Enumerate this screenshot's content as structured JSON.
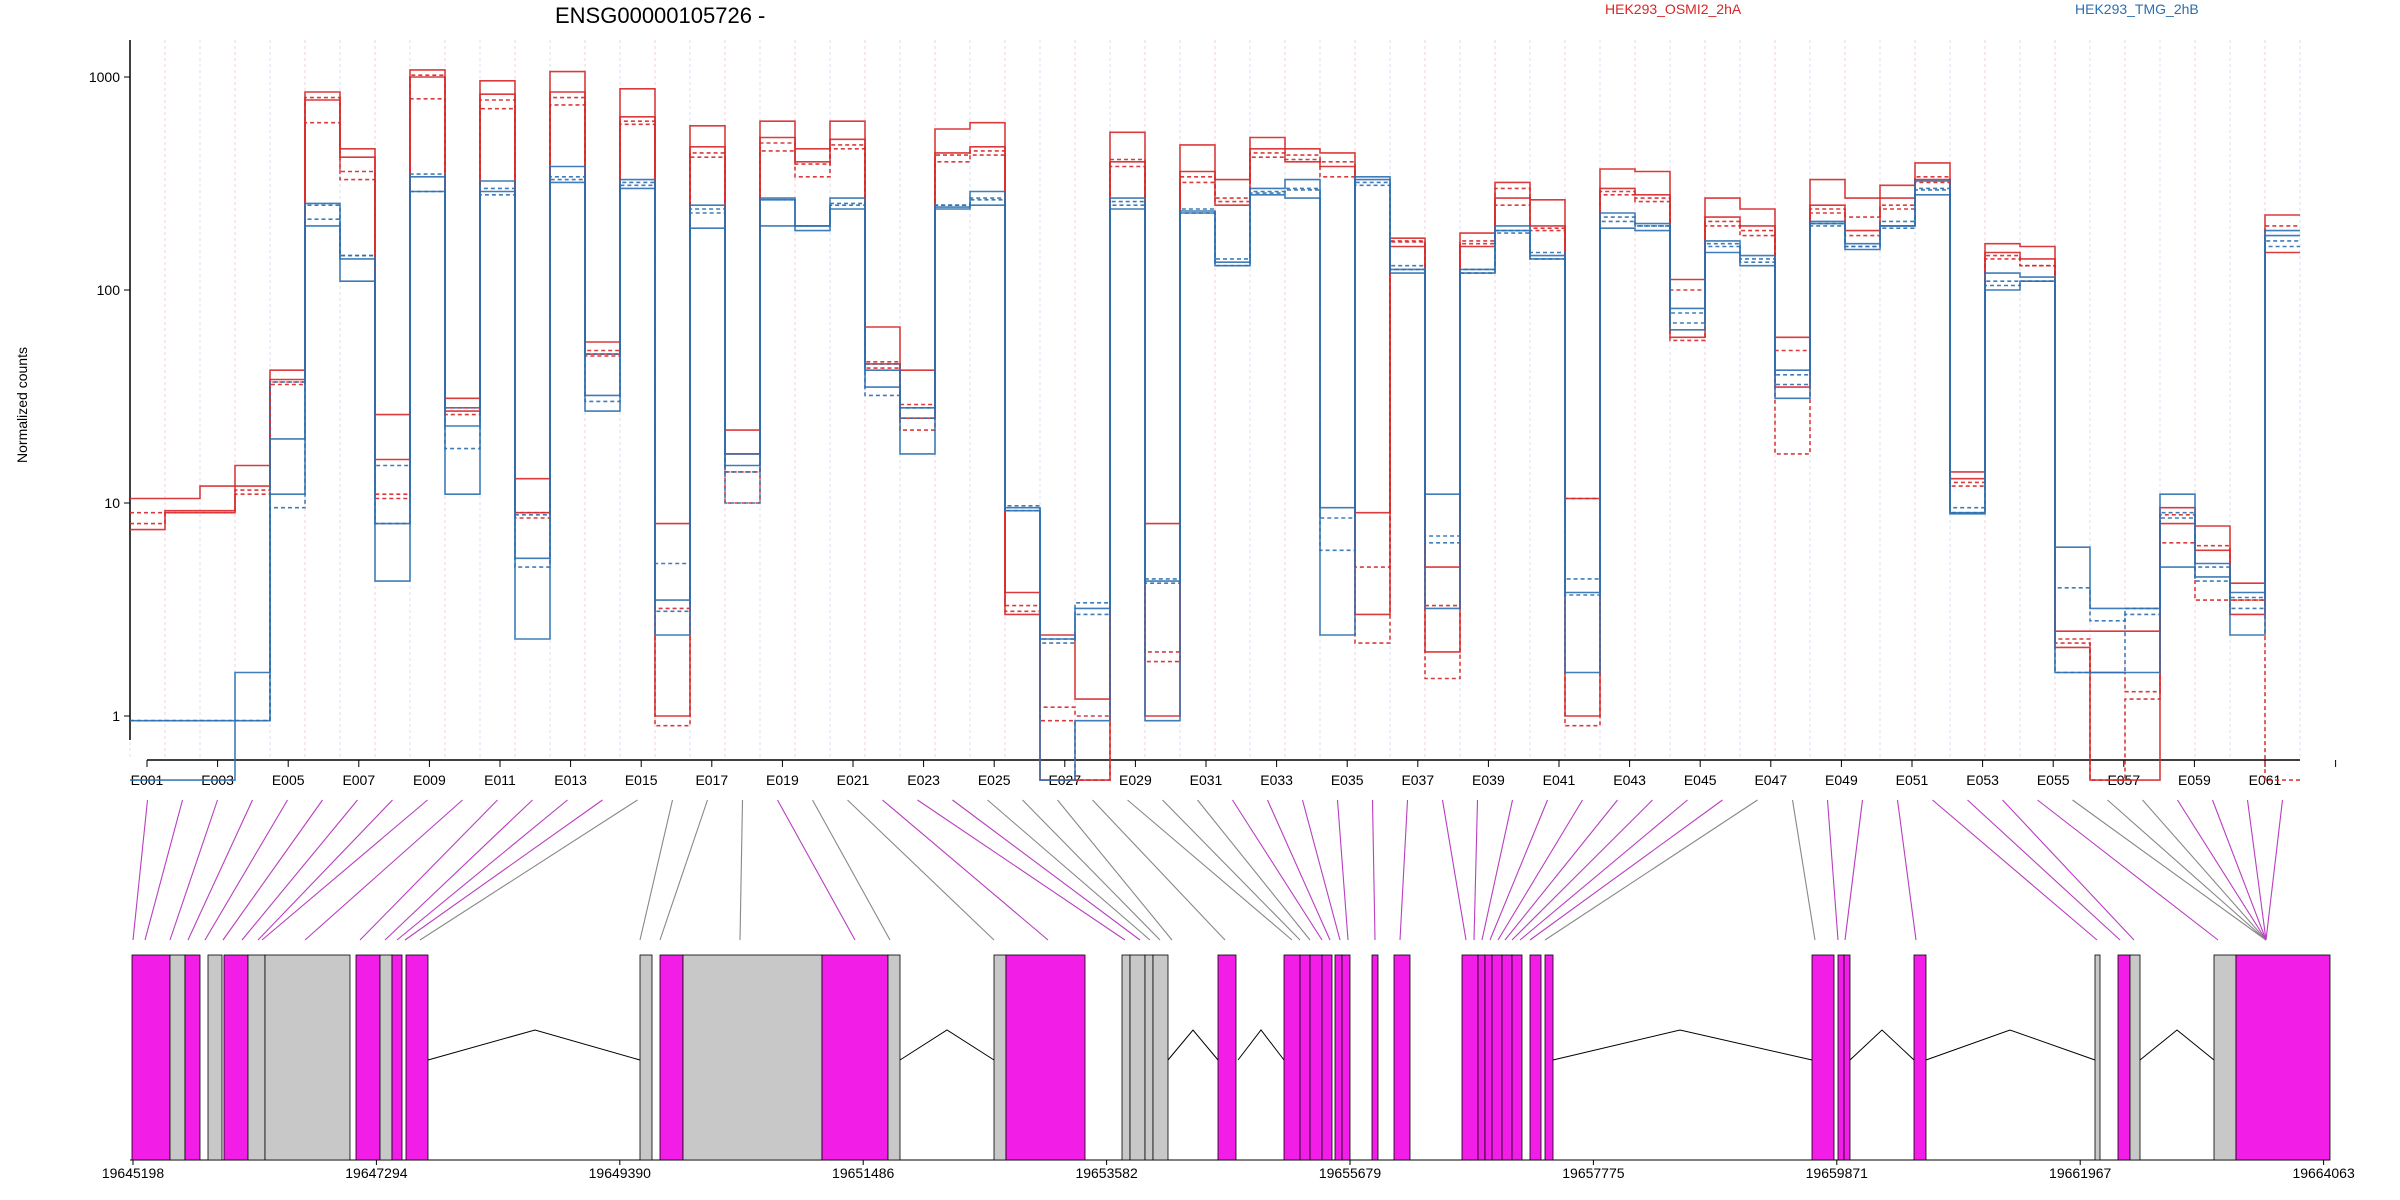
{
  "chart_data": {
    "type": "line",
    "title": "ENSG00000105726 -",
    "ylabel": "Normalized counts",
    "y_scale": "log",
    "y_ticks": [
      "1000",
      "100",
      "10",
      "1"
    ],
    "y_tick_values": [
      1000,
      100,
      10,
      1
    ],
    "y_floor": 0.5,
    "categories": [
      "E001",
      "E002",
      "E003",
      "E004",
      "E005",
      "E006",
      "E007",
      "E008",
      "E009",
      "E010",
      "E011",
      "E012",
      "E013",
      "E014",
      "E015",
      "E016",
      "E017",
      "E018",
      "E019",
      "E020",
      "E021",
      "E022",
      "E023",
      "E024",
      "E025",
      "E026",
      "E027",
      "E028",
      "E029",
      "E030",
      "E031",
      "E032",
      "E033",
      "E034",
      "E035",
      "E036",
      "E037",
      "E038",
      "E039",
      "E040",
      "E041",
      "E042",
      "E043",
      "E044",
      "E045",
      "E046",
      "E047",
      "E048",
      "E049",
      "E050",
      "E051",
      "E052",
      "E053",
      "E054",
      "E055",
      "E056",
      "E057",
      "E058",
      "E059",
      "E060",
      "E061",
      "E062"
    ],
    "x_tick_labels": [
      "E001",
      "E003",
      "E005",
      "E007",
      "E009",
      "E011",
      "E013",
      "E015",
      "E017",
      "E019",
      "E021",
      "E023",
      "E025",
      "E027",
      "E029",
      "E031",
      "E033",
      "E035",
      "E037",
      "E039",
      "E041",
      "E043",
      "E045",
      "E047",
      "E049",
      "E051",
      "E053",
      "E055",
      "E057",
      "E059",
      "E061"
    ],
    "colors": {
      "HEK293_OSMI2_2hA": "#d62728",
      "HEK293_TMG_2hB": "#2b6fb0"
    },
    "legend": [
      "HEK293_OSMI2_2hA",
      "HEK293_TMG_2hB"
    ],
    "series": [
      {
        "name": "HEK293_OSMI2_2hA",
        "values": [
          10.5,
          10.5,
          12,
          15,
          42,
          850,
          460,
          26,
          1080,
          31,
          960,
          13,
          1060,
          57,
          880,
          8,
          590,
          22,
          620,
          460,
          620,
          67,
          42,
          570,
          610,
          3.8,
          2.4,
          1.2,
          550,
          8,
          480,
          330,
          520,
          460,
          440,
          9,
          175,
          5,
          185,
          320,
          265,
          10.5,
          370,
          360,
          112,
          270,
          240,
          60,
          330,
          270,
          310,
          395,
          14,
          165,
          160,
          2.5,
          2.5,
          2.5,
          9.5,
          7.8,
          4.2,
          225
        ]
      },
      {
        "name": "HEK293_OSMI2_2hA",
        "values": [
          8,
          9,
          9,
          11,
          36,
          610,
          330,
          10.5,
          790,
          26,
          710,
          8.5,
          740,
          49,
          600,
          3.2,
          420,
          14,
          450,
          340,
          460,
          43,
          29,
          400,
          430,
          3.3,
          1.1,
          1,
          380,
          2,
          320,
          270,
          420,
          410,
          340,
          5,
          170,
          3.3,
          165,
          250,
          195,
          10.5,
          280,
          260,
          100,
          200,
          180,
          52,
          240,
          220,
          240,
          320,
          12,
          140,
          130,
          2.3,
          1.6,
          1.3,
          8.8,
          6.3,
          3.5,
          200
        ]
      },
      {
        "name": "HEK293_OSMI2_2hA",
        "values": [
          7.5,
          9.2,
          9.2,
          12,
          38,
          780,
          420,
          16,
          1000,
          27,
          830,
          9,
          850,
          50,
          650,
          1,
          470,
          17,
          520,
          400,
          510,
          45,
          25,
          440,
          470,
          3,
          0.5,
          0.5,
          400,
          1,
          360,
          250,
          460,
          400,
          380,
          3,
          160,
          2,
          160,
          270,
          200,
          1,
          300,
          280,
          60,
          220,
          200,
          35,
          250,
          190,
          270,
          330,
          13,
          150,
          140,
          2.1,
          0.5,
          0.5,
          8,
          6,
          3,
          150
        ]
      },
      {
        "name": "HEK293_OSMI2_2hA",
        "values": [
          9,
          9,
          9,
          11.5,
          37,
          800,
          360,
          11,
          1020,
          28,
          780,
          9,
          800,
          52,
          620,
          0.9,
          440,
          10,
          490,
          390,
          480,
          46,
          22,
          430,
          450,
          3.1,
          0.95,
          0.5,
          410,
          1.8,
          340,
          260,
          440,
          430,
          400,
          2.2,
          168,
          1.5,
          170,
          300,
          190,
          0.9,
          290,
          270,
          58,
          210,
          190,
          17,
          230,
          180,
          250,
          340,
          12.5,
          145,
          130,
          2.2,
          0.5,
          1.2,
          6.5,
          3.5,
          3.5,
          0.5
        ]
      },
      {
        "name": "HEK293_TMG_2hB",
        "values": [
          0.95,
          0.95,
          0.95,
          0.95,
          11,
          255,
          140,
          8,
          340,
          23,
          325,
          5.5,
          380,
          32,
          330,
          3.5,
          250,
          15,
          270,
          200,
          270,
          42,
          28,
          245,
          290,
          9.5,
          2.3,
          3.2,
          270,
          4.3,
          235,
          135,
          300,
          330,
          9.5,
          340,
          125,
          11,
          125,
          200,
          145,
          3.8,
          230,
          205,
          82,
          170,
          145,
          42,
          210,
          165,
          200,
          325,
          9,
          120,
          115,
          6.2,
          3.2,
          3.2,
          11,
          5.2,
          3.8,
          180
        ]
      },
      {
        "name": "HEK293_TMG_2hB",
        "values": [
          0.95,
          0.95,
          0.95,
          0.95,
          37,
          215,
          145,
          15,
          290,
          28,
          280,
          8.8,
          330,
          50,
          310,
          3.1,
          240,
          10,
          265,
          200,
          250,
          32,
          28,
          250,
          265,
          9.7,
          2.3,
          3.4,
          250,
          4.4,
          230,
          140,
          290,
          295,
          6,
          310,
          130,
          6.5,
          125,
          190,
          150,
          4.4,
          220,
          200,
          70,
          160,
          140,
          40,
          200,
          160,
          195,
          295,
          9.5,
          105,
          110,
          1.6,
          1.6,
          3.2,
          8.5,
          4.3,
          3.2,
          160
        ]
      },
      {
        "name": "HEK293_TMG_2hB",
        "values": [
          0.5,
          0.5,
          0.5,
          1.6,
          20,
          200,
          110,
          4.3,
          290,
          11,
          290,
          2.3,
          320,
          27,
          300,
          2.4,
          195,
          17,
          200,
          190,
          240,
          35,
          17,
          240,
          250,
          9.2,
          0.5,
          0.95,
          240,
          0.95,
          230,
          130,
          280,
          270,
          2.4,
          330,
          120,
          3.2,
          120,
          190,
          140,
          1.6,
          195,
          190,
          65,
          150,
          130,
          31,
          205,
          155,
          200,
          280,
          8.9,
          100,
          110,
          1.6,
          1.6,
          1.6,
          5,
          4.5,
          2.4,
          190
        ]
      },
      {
        "name": "HEK293_TMG_2hB",
        "values": [
          0.95,
          0.95,
          0.95,
          0.95,
          9.5,
          250,
          145,
          8,
          350,
          18,
          300,
          5,
          340,
          30,
          320,
          5.2,
          230,
          14,
          265,
          200,
          255,
          45,
          25,
          250,
          270,
          9.2,
          2.2,
          3,
          260,
          4.2,
          240,
          130,
          285,
          300,
          8.5,
          320,
          125,
          7,
          120,
          185,
          140,
          3.7,
          210,
          200,
          78,
          165,
          135,
          36,
          205,
          160,
          210,
          300,
          9,
          110,
          110,
          4,
          2.8,
          3,
          9,
          5,
          3.6,
          170
        ]
      }
    ],
    "genomic_ticks": [
      "19645198",
      "19647294",
      "19649390",
      "19651486",
      "19653582",
      "19655679",
      "19657775",
      "19659871",
      "19661967",
      "19664063"
    ],
    "gene_model_colors": {
      "tested": "#f21ee8",
      "untested": "#c8c8c8"
    }
  }
}
